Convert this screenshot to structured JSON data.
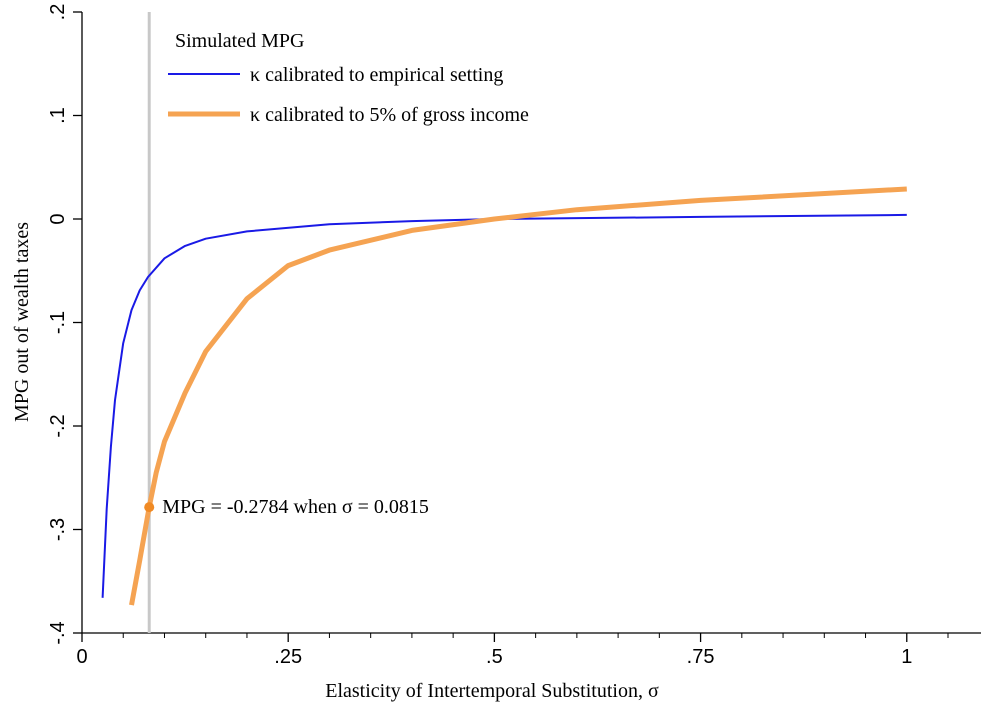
{
  "chart_data": {
    "type": "line",
    "xlabel": "Elasticity of Intertemporal Substitution,  σ",
    "ylabel": "MPG out of wealth taxes",
    "legend_title": "Simulated MPG",
    "legend": "top-left",
    "xlim": [
      0,
      1.09
    ],
    "ylim": [
      -0.4,
      0.2
    ],
    "xticks": [
      0,
      {
        "value": 0.25,
        "label": ".25"
      },
      {
        "value": 0.5,
        "label": ".5"
      },
      {
        "value": 0.75,
        "label": ".75"
      },
      1
    ],
    "xminorticks": [
      0.05,
      0.1,
      0.15,
      0.2,
      0.3,
      0.35,
      0.4,
      0.45,
      0.55,
      0.6,
      0.65,
      0.7,
      0.8,
      0.85,
      0.9,
      0.95,
      1.05
    ],
    "yticks": [
      {
        "value": -0.4,
        "label": "-.4"
      },
      {
        "value": -0.3,
        "label": "-.3"
      },
      {
        "value": -0.2,
        "label": "-.2"
      },
      {
        "value": -0.1,
        "label": "-.1"
      },
      0,
      {
        "value": 0.1,
        "label": ".1"
      },
      {
        "value": 0.2,
        "label": ".2"
      }
    ],
    "series": [
      {
        "name": "κ calibrated to empirical setting",
        "color": "#1a1ae6",
        "width": 2,
        "x": [
          0.025,
          0.03,
          0.035,
          0.04,
          0.05,
          0.06,
          0.07,
          0.08,
          0.1,
          0.125,
          0.15,
          0.2,
          0.3,
          0.4,
          0.5,
          0.75,
          1
        ],
        "values": [
          -0.366,
          -0.28,
          -0.22,
          -0.175,
          -0.12,
          -0.088,
          -0.069,
          -0.056,
          -0.038,
          -0.026,
          -0.019,
          -0.012,
          -0.005,
          -0.002,
          0,
          0.002,
          0.004
        ]
      },
      {
        "name": "κ calibrated to 5% of gross income",
        "color": "#f5a352",
        "width": 5,
        "x": [
          0.06,
          0.07,
          0.0815,
          0.09,
          0.1,
          0.125,
          0.15,
          0.2,
          0.25,
          0.3,
          0.4,
          0.5,
          0.6,
          0.75,
          1
        ],
        "values": [
          -0.373,
          -0.33,
          -0.2784,
          -0.245,
          -0.215,
          -0.168,
          -0.128,
          -0.077,
          -0.045,
          -0.03,
          -0.011,
          0,
          0.009,
          0.018,
          0.029
        ]
      }
    ],
    "reference_line": {
      "x": 0.0815,
      "color": "#c8c8c8"
    },
    "annotation": {
      "text": "MPG = -0.2784 when  σ = 0.0815",
      "x": 0.0815,
      "y": -0.2784,
      "color": "#f08a24"
    }
  }
}
